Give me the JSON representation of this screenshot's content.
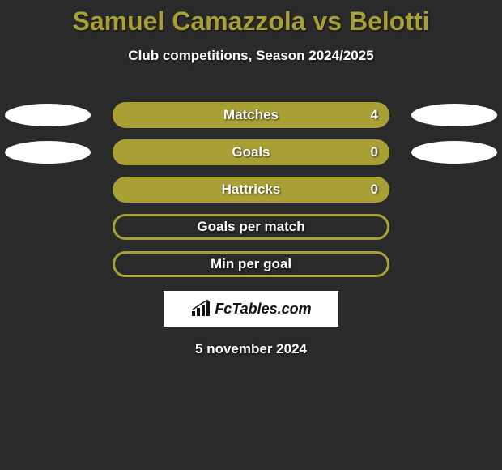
{
  "title": "Samuel Camazzola vs Belotti",
  "subtitle": "Club competitions, Season 2024/2025",
  "colors": {
    "accent": "#a8a035",
    "background": "#2a2a2a",
    "ellipse": "#ffffff",
    "text": "#ffffff"
  },
  "stats": [
    {
      "label": "Matches",
      "value": "4",
      "fill": "full",
      "left_ellipse": true,
      "right_ellipse": true
    },
    {
      "label": "Goals",
      "value": "0",
      "fill": "full",
      "left_ellipse": true,
      "right_ellipse": true
    },
    {
      "label": "Hattricks",
      "value": "0",
      "fill": "full",
      "left_ellipse": false,
      "right_ellipse": false
    },
    {
      "label": "Goals per match",
      "value": "",
      "fill": "outline",
      "left_ellipse": false,
      "right_ellipse": false
    },
    {
      "label": "Min per goal",
      "value": "",
      "fill": "outline",
      "left_ellipse": false,
      "right_ellipse": false
    }
  ],
  "logo": {
    "text": "FcTables.com"
  },
  "footer_date": "5 november 2024"
}
